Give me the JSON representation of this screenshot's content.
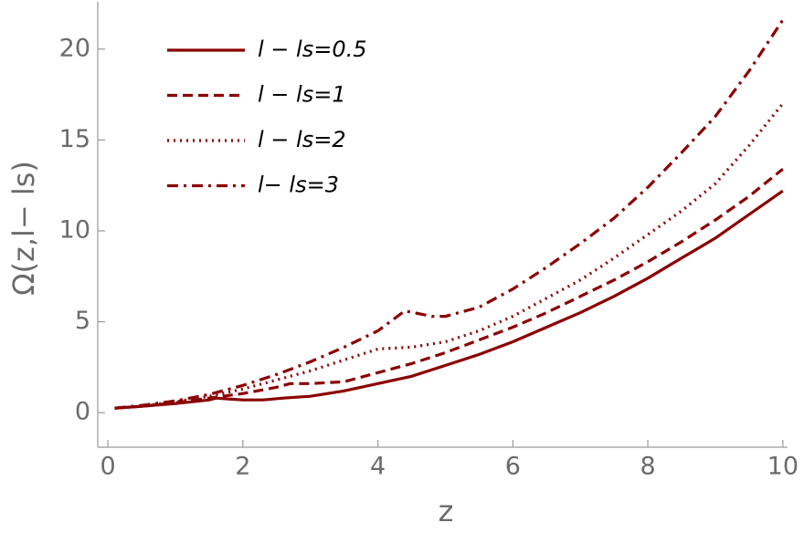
{
  "chart_data": {
    "type": "line",
    "xlabel": "z",
    "ylabel": "Ω(z,l− ls)",
    "xlim": [
      -0.15,
      10.07
    ],
    "ylim": [
      -1.9,
      22.6
    ],
    "xticks": [
      0,
      2,
      4,
      6,
      8,
      10
    ],
    "yticks": [
      0,
      5,
      10,
      15,
      20
    ],
    "series": [
      {
        "name": "l − ls=0.5",
        "color": "#8b0000",
        "dash": "solid",
        "x": [
          0.1,
          0.5,
          1,
          1.5,
          1.6,
          2,
          2.3,
          2.6,
          3,
          3.5,
          4,
          4.5,
          5,
          5.5,
          6,
          6.5,
          7,
          7.5,
          8,
          8.5,
          9,
          9.5,
          10
        ],
        "values": [
          0.25,
          0.35,
          0.5,
          0.7,
          0.8,
          0.7,
          0.7,
          0.8,
          0.9,
          1.2,
          1.6,
          2.0,
          2.6,
          3.2,
          3.9,
          4.7,
          5.5,
          6.4,
          7.4,
          8.5,
          9.6,
          10.9,
          12.2
        ]
      },
      {
        "name": "l − ls=1",
        "color": "#8b0000",
        "dash": "dashed",
        "x": [
          0.1,
          0.5,
          1,
          1.5,
          2,
          2.5,
          2.7,
          3,
          3.5,
          4,
          4.5,
          5,
          5.5,
          6,
          6.5,
          7,
          7.5,
          8,
          8.5,
          9,
          9.5,
          10
        ],
        "values": [
          0.25,
          0.35,
          0.55,
          0.8,
          1.05,
          1.4,
          1.6,
          1.6,
          1.7,
          2.2,
          2.7,
          3.3,
          4.0,
          4.7,
          5.5,
          6.4,
          7.3,
          8.3,
          9.4,
          10.6,
          11.9,
          13.4
        ]
      },
      {
        "name": "l − ls=2",
        "color": "#8b0000",
        "dash": "dotted",
        "x": [
          0.1,
          0.5,
          1,
          1.5,
          2,
          2.5,
          3,
          3.5,
          4,
          4.5,
          5,
          5.5,
          6,
          6.5,
          7,
          7.5,
          8,
          8.5,
          9,
          9.5,
          10
        ],
        "values": [
          0.25,
          0.35,
          0.6,
          0.9,
          1.3,
          1.8,
          2.3,
          2.9,
          3.5,
          3.6,
          3.9,
          4.5,
          5.3,
          6.3,
          7.3,
          8.5,
          9.8,
          11.1,
          12.6,
          14.7,
          17.0
        ]
      },
      {
        "name": "l− ls=3",
        "color": "#8b0000",
        "dash": "dashdot",
        "x": [
          0.1,
          0.5,
          1,
          1.5,
          2,
          2.5,
          3,
          3.5,
          4,
          4.4,
          4.8,
          5,
          5.5,
          6,
          6.5,
          7,
          7.5,
          8,
          8.5,
          9,
          9.5,
          10
        ],
        "values": [
          0.25,
          0.4,
          0.65,
          1.0,
          1.5,
          2.1,
          2.8,
          3.6,
          4.5,
          5.6,
          5.3,
          5.3,
          5.8,
          6.8,
          8.0,
          9.3,
          10.7,
          12.4,
          14.3,
          16.3,
          18.8,
          21.6
        ]
      }
    ]
  }
}
